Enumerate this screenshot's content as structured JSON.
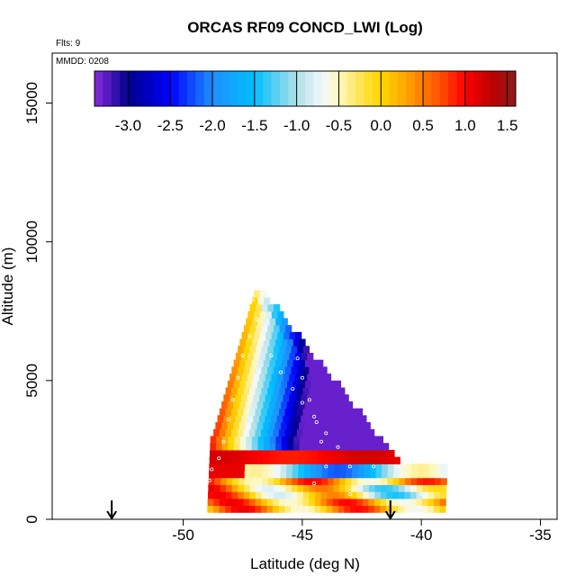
{
  "chart_data": {
    "type": "heatmap",
    "title": "ORCAS RF09 CONCD_LWI (Log)",
    "flights_label": "Flts: 9",
    "date_label": "MMDD: 0208",
    "xlabel": "Latitude (deg N)",
    "ylabel": "Altitude (m)",
    "xlim": [
      -55.5,
      -34.3
    ],
    "ylim": [
      0,
      16800
    ],
    "x_ticks": [
      -50,
      -45,
      -40,
      -35
    ],
    "x_tick_labels": [
      "-50",
      "-45",
      "-40",
      "-35"
    ],
    "y_ticks": [
      0,
      5000,
      10000,
      15000
    ],
    "y_tick_labels": [
      "0",
      "5000",
      "10000",
      "15000"
    ],
    "grid": false,
    "colorbar": {
      "placement": "top inside plot",
      "range": [
        -3.4,
        1.6
      ],
      "ticks": [
        -3.0,
        -2.5,
        -2.0,
        -1.5,
        -1.0,
        -0.5,
        0.0,
        0.5,
        1.0,
        1.5
      ],
      "tick_labels": [
        "-3.0",
        "-2.5",
        "-2.0",
        "-1.5",
        "-1.0",
        "-0.5",
        "0.0",
        "0.5",
        "1.0",
        "1.5"
      ],
      "color_stops": [
        [
          -3.4,
          "#8a2be2"
        ],
        [
          -3.0,
          "#00008b"
        ],
        [
          -2.5,
          "#0000ff"
        ],
        [
          -2.0,
          "#1e90ff"
        ],
        [
          -1.5,
          "#00bfff"
        ],
        [
          -1.0,
          "#b0e0e6"
        ],
        [
          -0.7,
          "#f0f8ff"
        ],
        [
          -0.5,
          "#fff8c0"
        ],
        [
          -0.2,
          "#ffe040"
        ],
        [
          0.0,
          "#ffd700"
        ],
        [
          0.3,
          "#ffa500"
        ],
        [
          0.7,
          "#ff5000"
        ],
        [
          1.0,
          "#ff0000"
        ],
        [
          1.3,
          "#c00000"
        ],
        [
          1.6,
          "#8b1a1a"
        ]
      ]
    },
    "arrows_latitude": [
      -53.0,
      -41.3
    ],
    "flight_track_points": [
      [
        -47.1,
        7900
      ],
      [
        -46.9,
        7200
      ],
      [
        -46.6,
        6500
      ],
      [
        -46.3,
        5900
      ],
      [
        -45.9,
        5300
      ],
      [
        -45.4,
        4700
      ],
      [
        -45.0,
        4200
      ],
      [
        -44.5,
        3700
      ],
      [
        -44.0,
        3100
      ],
      [
        -43.5,
        2600
      ],
      [
        -47.2,
        6600
      ],
      [
        -47.5,
        5900
      ],
      [
        -47.7,
        5100
      ],
      [
        -47.9,
        4300
      ],
      [
        -48.1,
        3600
      ],
      [
        -48.3,
        2800
      ],
      [
        -48.5,
        2200
      ],
      [
        -48.8,
        1800
      ],
      [
        -45.2,
        5800
      ],
      [
        -45.0,
        5100
      ],
      [
        -44.7,
        4300
      ],
      [
        -44.4,
        3500
      ],
      [
        -44.2,
        2800
      ],
      [
        -44.0,
        1900
      ],
      [
        -43.0,
        1900
      ],
      [
        -42.0,
        1900
      ],
      [
        -41.0,
        1900
      ],
      [
        -41.5,
        1300
      ],
      [
        -40.0,
        900
      ],
      [
        -44.5,
        1300
      ],
      [
        -43.0,
        900
      ],
      [
        -49.0,
        1900
      ],
      [
        -48.9,
        1400
      ]
    ]
  }
}
